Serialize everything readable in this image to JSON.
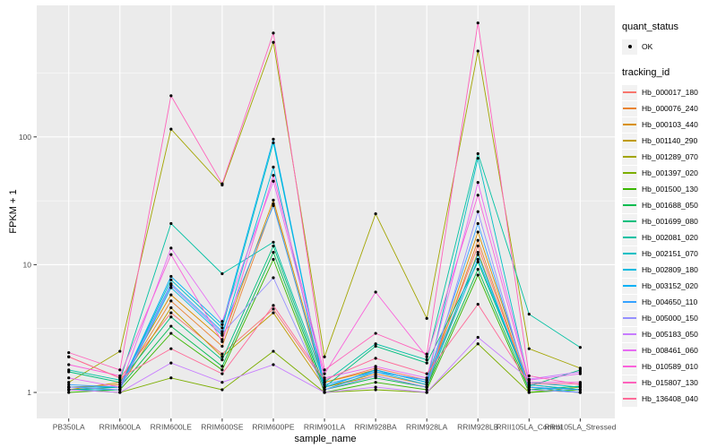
{
  "figure": {
    "panel_background": "#EBEBEB",
    "grid_color": "#FFFFFF",
    "tick_label_color": "#4D4D4D",
    "point_color": "#000000"
  },
  "legend": {
    "quant_status": {
      "title": "quant_status",
      "items": [
        {
          "label": "OK",
          "marker": "point"
        }
      ]
    },
    "tracking_id": {
      "title": "tracking_id"
    }
  },
  "chart_data": {
    "type": "line",
    "title": "",
    "xlabel": "sample_name",
    "ylabel": "FPKM + 1",
    "y_scale": "log10",
    "y_ticks": [
      1,
      10,
      100
    ],
    "ylim": [
      1,
      1000
    ],
    "grid": true,
    "legend_position": "right",
    "x_categories": [
      "PB350LA",
      "RRIM600LA",
      "RRIM600LE",
      "RRIM600SE",
      "RRIM600PE",
      "RRIM901LA",
      "RRIM928BA",
      "RRIM928LA",
      "RRIM928LB",
      "RRII105LA_Control",
      "RRII105LA_Stressed"
    ],
    "series": [
      {
        "name": "Hb_000017_180",
        "color": "#F8766D",
        "values": [
          1.9,
          1.3,
          4.2,
          2.0,
          4.5,
          1.2,
          1.55,
          1.25,
          14,
          1.1,
          1.05
        ]
      },
      {
        "name": "Hb_000076_240",
        "color": "#EA8331",
        "values": [
          1.1,
          1.15,
          5.2,
          2.3,
          30,
          1.1,
          1.4,
          1.15,
          15.5,
          1.1,
          1.0
        ]
      },
      {
        "name": "Hb_000103_440",
        "color": "#D89000",
        "values": [
          1.05,
          1.2,
          5.8,
          2.6,
          32,
          1.2,
          1.5,
          1.2,
          18,
          1.15,
          1.05
        ]
      },
      {
        "name": "Hb_001140_290",
        "color": "#C09B00",
        "values": [
          1.1,
          1.1,
          4.6,
          1.9,
          4.2,
          1.1,
          1.35,
          1.1,
          12.5,
          1.05,
          1.0
        ]
      },
      {
        "name": "Hb_001289_070",
        "color": "#A3A500",
        "values": [
          1.2,
          2.1,
          115,
          42,
          550,
          1.9,
          25,
          3.8,
          470,
          2.2,
          1.55
        ]
      },
      {
        "name": "Hb_001397_020",
        "color": "#7CAE00",
        "values": [
          1.05,
          1.0,
          1.3,
          1.05,
          2.1,
          1.0,
          1.05,
          1.0,
          2.4,
          1.0,
          1.1
        ]
      },
      {
        "name": "Hb_001500_130",
        "color": "#39B600",
        "values": [
          1.0,
          1.05,
          2.9,
          1.5,
          11,
          1.0,
          1.2,
          1.05,
          8.3,
          1.0,
          1.05
        ]
      },
      {
        "name": "Hb_001688_050",
        "color": "#00BB4E",
        "values": [
          1.05,
          1.1,
          3.3,
          1.6,
          12.5,
          1.05,
          1.3,
          1.1,
          9.2,
          1.05,
          1.12
        ]
      },
      {
        "name": "Hb_001699_080",
        "color": "#00BF7D",
        "values": [
          1.45,
          1.2,
          3.9,
          1.8,
          14,
          1.1,
          2.3,
          1.7,
          10.5,
          1.12,
          1.5
        ]
      },
      {
        "name": "Hb_002081_020",
        "color": "#00C1A3",
        "values": [
          1.5,
          1.25,
          21,
          8.5,
          15,
          1.2,
          2.4,
          1.8,
          74,
          4.1,
          2.25
        ]
      },
      {
        "name": "Hb_002151_070",
        "color": "#00BFC4",
        "values": [
          1.1,
          1.1,
          7.6,
          3.2,
          90,
          1.1,
          1.5,
          1.2,
          68,
          1.2,
          1.1
        ]
      },
      {
        "name": "Hb_002809_180",
        "color": "#00BAE0",
        "values": [
          1.05,
          1.05,
          6.6,
          2.8,
          58,
          1.05,
          1.45,
          1.15,
          11,
          1.15,
          1.05
        ]
      },
      {
        "name": "Hb_003152_020",
        "color": "#00B0F6",
        "values": [
          1.1,
          1.1,
          8.1,
          3.4,
          96,
          1.1,
          1.5,
          1.2,
          12,
          1.1,
          1.0
        ]
      },
      {
        "name": "Hb_004650_110",
        "color": "#35A2FF",
        "values": [
          1.15,
          1.1,
          7.1,
          3.0,
          29,
          1.15,
          1.45,
          1.25,
          21,
          1.1,
          1.05
        ]
      },
      {
        "name": "Hb_005000_150",
        "color": "#9590FF",
        "values": [
          1.1,
          1.05,
          6.9,
          2.9,
          7.9,
          1.05,
          1.35,
          1.1,
          26,
          1.05,
          1.0
        ]
      },
      {
        "name": "Hb_005183_050",
        "color": "#C77CFF",
        "values": [
          1.05,
          1.0,
          1.7,
          1.2,
          1.65,
          1.0,
          1.1,
          1.0,
          2.7,
          1.27,
          1.45
        ]
      },
      {
        "name": "Hb_008461_060",
        "color": "#E76BF3",
        "values": [
          1.3,
          1.1,
          13.5,
          3.6,
          45,
          1.3,
          1.6,
          1.3,
          44,
          1.25,
          1.4
        ]
      },
      {
        "name": "Hb_010589_010",
        "color": "#FA62DB",
        "values": [
          1.65,
          1.35,
          12,
          2.5,
          50,
          1.4,
          6.1,
          1.9,
          35,
          1.2,
          1.2
        ]
      },
      {
        "name": "Hb_015807_130",
        "color": "#FF62BC",
        "values": [
          2.05,
          1.5,
          210,
          43,
          650,
          1.5,
          2.9,
          2.0,
          780,
          1.35,
          1.15
        ]
      },
      {
        "name": "Hb_136408_040",
        "color": "#FF6A98",
        "values": [
          1.9,
          1.3,
          2.2,
          1.4,
          4.8,
          1.25,
          1.85,
          1.4,
          4.9,
          1.17,
          1.17
        ]
      }
    ]
  }
}
